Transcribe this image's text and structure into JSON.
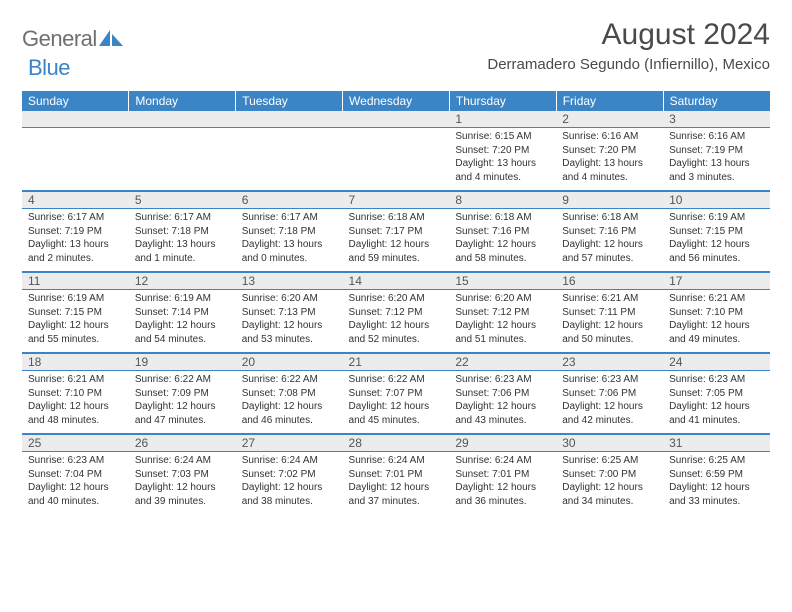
{
  "brand": {
    "word1": "General",
    "word2": "Blue"
  },
  "title": "August 2024",
  "location": "Derramadero Segundo (Infiernillo), Mexico",
  "colors": {
    "header_bg": "#3b85c6",
    "header_text": "#ffffff",
    "daynum_bg": "#ececec",
    "rule": "#3b85c6",
    "brand_gray": "#6f6f6f",
    "brand_blue": "#3b85c6"
  },
  "day_headers": [
    "Sunday",
    "Monday",
    "Tuesday",
    "Wednesday",
    "Thursday",
    "Friday",
    "Saturday"
  ],
  "weeks": [
    [
      {
        "num": "",
        "lines": []
      },
      {
        "num": "",
        "lines": []
      },
      {
        "num": "",
        "lines": []
      },
      {
        "num": "",
        "lines": []
      },
      {
        "num": "1",
        "lines": [
          "Sunrise: 6:15 AM",
          "Sunset: 7:20 PM",
          "Daylight: 13 hours",
          "and 4 minutes."
        ]
      },
      {
        "num": "2",
        "lines": [
          "Sunrise: 6:16 AM",
          "Sunset: 7:20 PM",
          "Daylight: 13 hours",
          "and 4 minutes."
        ]
      },
      {
        "num": "3",
        "lines": [
          "Sunrise: 6:16 AM",
          "Sunset: 7:19 PM",
          "Daylight: 13 hours",
          "and 3 minutes."
        ]
      }
    ],
    [
      {
        "num": "4",
        "lines": [
          "Sunrise: 6:17 AM",
          "Sunset: 7:19 PM",
          "Daylight: 13 hours",
          "and 2 minutes."
        ]
      },
      {
        "num": "5",
        "lines": [
          "Sunrise: 6:17 AM",
          "Sunset: 7:18 PM",
          "Daylight: 13 hours",
          "and 1 minute."
        ]
      },
      {
        "num": "6",
        "lines": [
          "Sunrise: 6:17 AM",
          "Sunset: 7:18 PM",
          "Daylight: 13 hours",
          "and 0 minutes."
        ]
      },
      {
        "num": "7",
        "lines": [
          "Sunrise: 6:18 AM",
          "Sunset: 7:17 PM",
          "Daylight: 12 hours",
          "and 59 minutes."
        ]
      },
      {
        "num": "8",
        "lines": [
          "Sunrise: 6:18 AM",
          "Sunset: 7:16 PM",
          "Daylight: 12 hours",
          "and 58 minutes."
        ]
      },
      {
        "num": "9",
        "lines": [
          "Sunrise: 6:18 AM",
          "Sunset: 7:16 PM",
          "Daylight: 12 hours",
          "and 57 minutes."
        ]
      },
      {
        "num": "10",
        "lines": [
          "Sunrise: 6:19 AM",
          "Sunset: 7:15 PM",
          "Daylight: 12 hours",
          "and 56 minutes."
        ]
      }
    ],
    [
      {
        "num": "11",
        "lines": [
          "Sunrise: 6:19 AM",
          "Sunset: 7:15 PM",
          "Daylight: 12 hours",
          "and 55 minutes."
        ]
      },
      {
        "num": "12",
        "lines": [
          "Sunrise: 6:19 AM",
          "Sunset: 7:14 PM",
          "Daylight: 12 hours",
          "and 54 minutes."
        ]
      },
      {
        "num": "13",
        "lines": [
          "Sunrise: 6:20 AM",
          "Sunset: 7:13 PM",
          "Daylight: 12 hours",
          "and 53 minutes."
        ]
      },
      {
        "num": "14",
        "lines": [
          "Sunrise: 6:20 AM",
          "Sunset: 7:12 PM",
          "Daylight: 12 hours",
          "and 52 minutes."
        ]
      },
      {
        "num": "15",
        "lines": [
          "Sunrise: 6:20 AM",
          "Sunset: 7:12 PM",
          "Daylight: 12 hours",
          "and 51 minutes."
        ]
      },
      {
        "num": "16",
        "lines": [
          "Sunrise: 6:21 AM",
          "Sunset: 7:11 PM",
          "Daylight: 12 hours",
          "and 50 minutes."
        ]
      },
      {
        "num": "17",
        "lines": [
          "Sunrise: 6:21 AM",
          "Sunset: 7:10 PM",
          "Daylight: 12 hours",
          "and 49 minutes."
        ]
      }
    ],
    [
      {
        "num": "18",
        "lines": [
          "Sunrise: 6:21 AM",
          "Sunset: 7:10 PM",
          "Daylight: 12 hours",
          "and 48 minutes."
        ]
      },
      {
        "num": "19",
        "lines": [
          "Sunrise: 6:22 AM",
          "Sunset: 7:09 PM",
          "Daylight: 12 hours",
          "and 47 minutes."
        ]
      },
      {
        "num": "20",
        "lines": [
          "Sunrise: 6:22 AM",
          "Sunset: 7:08 PM",
          "Daylight: 12 hours",
          "and 46 minutes."
        ]
      },
      {
        "num": "21",
        "lines": [
          "Sunrise: 6:22 AM",
          "Sunset: 7:07 PM",
          "Daylight: 12 hours",
          "and 45 minutes."
        ]
      },
      {
        "num": "22",
        "lines": [
          "Sunrise: 6:23 AM",
          "Sunset: 7:06 PM",
          "Daylight: 12 hours",
          "and 43 minutes."
        ]
      },
      {
        "num": "23",
        "lines": [
          "Sunrise: 6:23 AM",
          "Sunset: 7:06 PM",
          "Daylight: 12 hours",
          "and 42 minutes."
        ]
      },
      {
        "num": "24",
        "lines": [
          "Sunrise: 6:23 AM",
          "Sunset: 7:05 PM",
          "Daylight: 12 hours",
          "and 41 minutes."
        ]
      }
    ],
    [
      {
        "num": "25",
        "lines": [
          "Sunrise: 6:23 AM",
          "Sunset: 7:04 PM",
          "Daylight: 12 hours",
          "and 40 minutes."
        ]
      },
      {
        "num": "26",
        "lines": [
          "Sunrise: 6:24 AM",
          "Sunset: 7:03 PM",
          "Daylight: 12 hours",
          "and 39 minutes."
        ]
      },
      {
        "num": "27",
        "lines": [
          "Sunrise: 6:24 AM",
          "Sunset: 7:02 PM",
          "Daylight: 12 hours",
          "and 38 minutes."
        ]
      },
      {
        "num": "28",
        "lines": [
          "Sunrise: 6:24 AM",
          "Sunset: 7:01 PM",
          "Daylight: 12 hours",
          "and 37 minutes."
        ]
      },
      {
        "num": "29",
        "lines": [
          "Sunrise: 6:24 AM",
          "Sunset: 7:01 PM",
          "Daylight: 12 hours",
          "and 36 minutes."
        ]
      },
      {
        "num": "30",
        "lines": [
          "Sunrise: 6:25 AM",
          "Sunset: 7:00 PM",
          "Daylight: 12 hours",
          "and 34 minutes."
        ]
      },
      {
        "num": "31",
        "lines": [
          "Sunrise: 6:25 AM",
          "Sunset: 6:59 PM",
          "Daylight: 12 hours",
          "and 33 minutes."
        ]
      }
    ]
  ]
}
